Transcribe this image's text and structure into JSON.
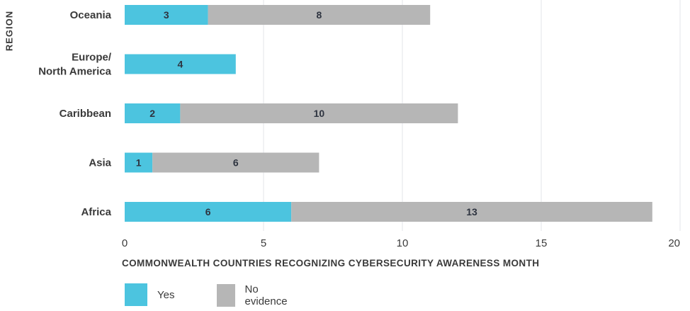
{
  "chart_data": {
    "type": "bar",
    "orientation": "horizontal",
    "stacked": true,
    "categories": [
      "Oceania",
      "Europe/ North America",
      "Caribbean",
      "Asia",
      "Africa"
    ],
    "category_lines": [
      [
        "Oceania"
      ],
      [
        "Europe/",
        "North America"
      ],
      [
        "Caribbean"
      ],
      [
        "Asia"
      ],
      [
        "Africa"
      ]
    ],
    "series": [
      {
        "name": "Yes",
        "values": [
          3,
          4,
          2,
          1,
          6
        ]
      },
      {
        "name": "No evidence",
        "values": [
          8,
          0,
          10,
          6,
          13
        ]
      }
    ],
    "xlabel": "COMMONWEALTH COUNTRIES RECOGNIZING CYBERSECURITY AWARENESS MONTH",
    "ylabel": "REGION",
    "xlim": [
      0,
      20
    ],
    "xticks": [
      "0",
      "5",
      "10",
      "15",
      "20"
    ],
    "grid": "vertical",
    "legend": "bottom-left"
  },
  "colors": {
    "yes": "#4cc4df",
    "no_evidence": "#b6b6b6",
    "grid": "#e3e6e8",
    "text": "#3a3a3a",
    "value_text": "#2e3440"
  }
}
